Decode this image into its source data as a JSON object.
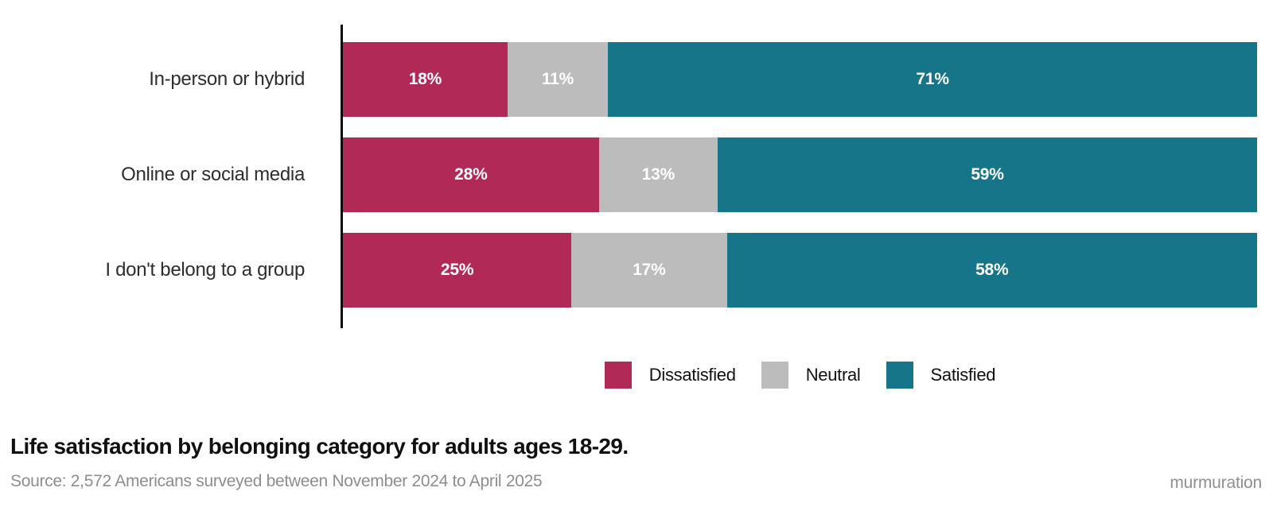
{
  "chart_data": {
    "type": "bar",
    "orientation": "horizontal",
    "stacked": true,
    "categories": [
      "In-person or hybrid",
      "Online or social media",
      "I don't belong to a group"
    ],
    "series": [
      {
        "name": "Dissatisfied",
        "color": "#b12a57",
        "values": [
          18,
          28,
          25
        ]
      },
      {
        "name": "Neutral",
        "color": "#bcbcbc",
        "values": [
          11,
          13,
          17
        ]
      },
      {
        "name": "Satisfied",
        "color": "#17758a",
        "values": [
          71,
          59,
          58
        ]
      }
    ],
    "value_suffix": "%",
    "xlim": [
      0,
      100
    ],
    "grid": false,
    "legend_position": "bottom-center",
    "title": "Life satisfaction by belonging category for adults ages 18-29.",
    "source": "Source: 2,572 Americans surveyed between November 2024 to April 2025",
    "brand": "murmuration"
  }
}
